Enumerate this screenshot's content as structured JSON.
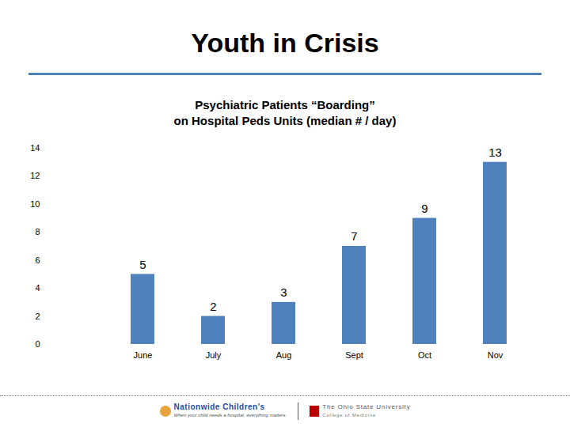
{
  "slide": {
    "title": "Youth in Crisis",
    "footer": [
      "Nationwide Children's",
      "When your child needs a hospital, everything matters.",
      "The Ohio State University",
      "College of Medicine"
    ]
  },
  "chart_data": {
    "type": "bar",
    "title": "Psychiatric Patients “Boarding”\non Hospital Peds Units (median # / day)",
    "categories": [
      "June",
      "July",
      "Aug",
      "Sept",
      "Oct",
      "Nov"
    ],
    "values": [
      5,
      2,
      3,
      7,
      9,
      13
    ],
    "color": "#4f81bd",
    "ylim": [
      0,
      14
    ],
    "yticks": [
      0,
      2,
      4,
      6,
      8,
      10,
      12,
      14
    ],
    "grid": false,
    "data_labels": true
  }
}
